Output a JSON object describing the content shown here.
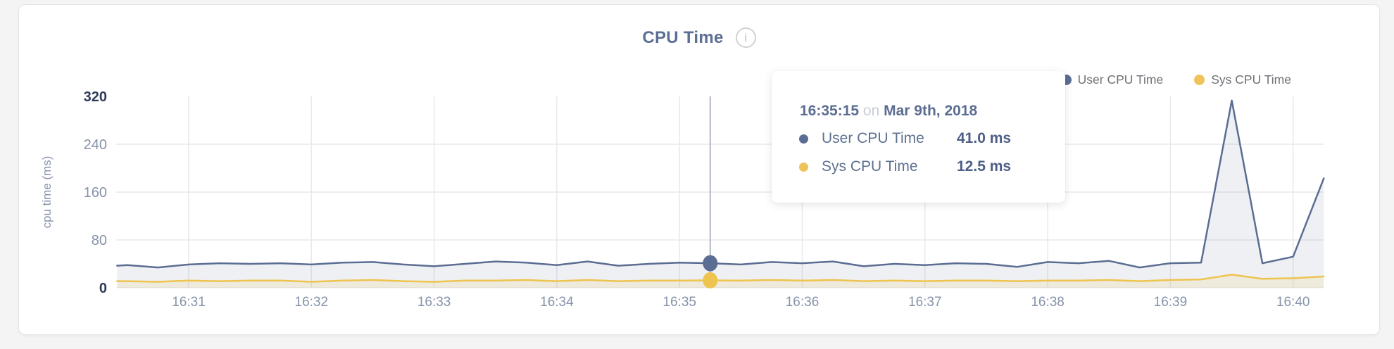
{
  "header": {
    "title": "CPU Time",
    "info_glyph": "i"
  },
  "legend": {
    "items": [
      {
        "label": "User CPU Time",
        "color": "#5b6d92"
      },
      {
        "label": "Sys CPU Time",
        "color": "#eec45a"
      }
    ]
  },
  "tooltip": {
    "time": "16:35:15",
    "conjunction": "on",
    "date": "Mar 9th, 2018",
    "rows": [
      {
        "label": "User CPU Time",
        "value": "41.0 ms",
        "color": "#5b6d92"
      },
      {
        "label": "Sys CPU Time",
        "value": "12.5 ms",
        "color": "#eec45a"
      }
    ]
  },
  "chart_data": {
    "type": "line",
    "title": "CPU Time",
    "xlabel": "",
    "ylabel": "cpu time (ms)",
    "ylim": [
      0,
      320
    ],
    "y_ticks": [
      0,
      80,
      160,
      240,
      320
    ],
    "y_ticks_emphasized": [
      0,
      320
    ],
    "x_ticks": [
      "16:31",
      "16:32",
      "16:33",
      "16:34",
      "16:35",
      "16:36",
      "16:37",
      "16:38",
      "16:39",
      "16:40"
    ],
    "x_range": [
      "16:30:25",
      "16:40:33"
    ],
    "sample_interval_seconds": 15,
    "grid": true,
    "legend_position": "top-right",
    "times": [
      "16:30:25",
      "16:30:30",
      "16:30:45",
      "16:31:00",
      "16:31:15",
      "16:31:30",
      "16:31:45",
      "16:32:00",
      "16:32:15",
      "16:32:30",
      "16:32:45",
      "16:33:00",
      "16:33:15",
      "16:33:30",
      "16:33:45",
      "16:34:00",
      "16:34:15",
      "16:34:30",
      "16:34:45",
      "16:35:00",
      "16:35:15",
      "16:35:30",
      "16:35:45",
      "16:36:00",
      "16:36:15",
      "16:36:30",
      "16:36:45",
      "16:37:00",
      "16:37:15",
      "16:37:30",
      "16:37:45",
      "16:38:00",
      "16:38:15",
      "16:38:30",
      "16:38:45",
      "16:39:00",
      "16:39:15",
      "16:39:30",
      "16:39:45",
      "16:40:00",
      "16:40:15"
    ],
    "series": [
      {
        "name": "User CPU Time",
        "color": "#5b6d92",
        "fill": "rgba(93,111,150,0.10)",
        "values": [
          37,
          38,
          34,
          39,
          41,
          40,
          41,
          39,
          42,
          43,
          39,
          36,
          40,
          44,
          42,
          38,
          44,
          37,
          40,
          42,
          41,
          39,
          43,
          41,
          44,
          36,
          40,
          38,
          41,
          40,
          35,
          43,
          41,
          45,
          34,
          41,
          42,
          313,
          41,
          52,
          183
        ]
      },
      {
        "name": "Sys CPU Time",
        "color": "#eec44f",
        "fill": "rgba(238,196,80,0.14)",
        "values": [
          11,
          11,
          10,
          12,
          11,
          12,
          12,
          10,
          12,
          13,
          11,
          10,
          12,
          12,
          13,
          11,
          13,
          11,
          12,
          12,
          12.5,
          12,
          13,
          12,
          13,
          11,
          12,
          11,
          12,
          12,
          11,
          12,
          12,
          13,
          11,
          13,
          14,
          22,
          15,
          16,
          19
        ]
      }
    ],
    "highlight": {
      "time": "16:35:15",
      "index": 20,
      "date": "Mar 9th, 2018",
      "user_ms": 41.0,
      "sys_ms": 12.5
    },
    "colors": {
      "grid": "#e9e9eb",
      "tick": "#8793a9",
      "tick_emphasis": "#2f3c58",
      "crosshair": "#b3b8c3"
    }
  }
}
